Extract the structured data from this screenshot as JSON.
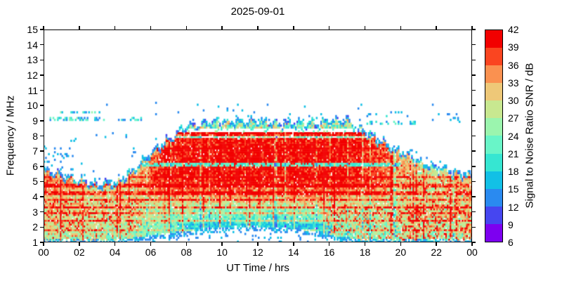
{
  "chart_data": {
    "type": "heatmap",
    "title": "2025-09-01",
    "xlabel": "UT Time / hrs",
    "ylabel": "Frequency / MHz",
    "colorbar_label": "Signal to Noise Ratio SNR / dB",
    "xlim": [
      0,
      24
    ],
    "ylim": [
      1,
      15
    ],
    "zlim": [
      6,
      42
    ],
    "x_ticks": {
      "values": [
        0,
        2,
        4,
        6,
        8,
        10,
        12,
        14,
        16,
        18,
        20,
        22,
        24
      ],
      "labels": [
        "00",
        "02",
        "04",
        "06",
        "08",
        "10",
        "12",
        "14",
        "16",
        "18",
        "20",
        "22",
        "00"
      ]
    },
    "y_ticks": {
      "values": [
        1,
        2,
        3,
        4,
        5,
        6,
        7,
        8,
        9,
        10,
        11,
        12,
        13,
        14,
        15
      ],
      "labels": [
        "1",
        "2",
        "3",
        "4",
        "5",
        "6",
        "7",
        "8",
        "9",
        "10",
        "11",
        "12",
        "13",
        "14",
        "15"
      ]
    },
    "colorbar_ticks": {
      "values": [
        6,
        9,
        12,
        15,
        18,
        21,
        24,
        27,
        30,
        33,
        36,
        39,
        42
      ],
      "labels": [
        "6",
        "9",
        "12",
        "15",
        "18",
        "21",
        "24",
        "27",
        "30",
        "33",
        "36",
        "39",
        "42"
      ]
    },
    "colormap_low_to_high": [
      "#7d00f0",
      "#4646f0",
      "#2a8af0",
      "#12c0e6",
      "#36e6d2",
      "#69f5c8",
      "#9bf5ae",
      "#c8e890",
      "#eec878",
      "#fa9150",
      "#fa4520",
      "#f20000"
    ],
    "grid_on": false,
    "upper_envelope_mhz_by_hour": [
      5.9,
      5.5,
      5.15,
      4.85,
      5.0,
      5.7,
      7.0,
      7.8,
      8.75,
      8.9,
      9.05,
      9.0,
      9.1,
      8.9,
      8.95,
      8.85,
      9.0,
      9.15,
      8.35,
      7.6,
      7.0,
      6.4,
      6.0,
      5.7,
      5.5
    ],
    "lower_envelope_mhz_by_hour": [
      1.0,
      1.0,
      1.0,
      1.0,
      1.0,
      1.05,
      1.3,
      1.4,
      1.55,
      1.7,
      1.8,
      1.85,
      1.85,
      1.8,
      1.75,
      1.6,
      1.35,
      1.1,
      1.0,
      1.0,
      1.0,
      1.0,
      1.0,
      1.0,
      1.0
    ],
    "grid": {
      "hours": [
        0,
        1,
        2,
        3,
        4,
        5,
        6,
        7,
        8,
        9,
        10,
        11,
        12,
        13,
        14,
        15,
        16,
        17,
        18,
        19,
        20,
        21,
        22,
        23
      ],
      "freqs_mhz": [
        1,
        2,
        3,
        4,
        5,
        6,
        7,
        8,
        9,
        10,
        11,
        12,
        13,
        14
      ],
      "mean_snr_db": [
        [
          26,
          26,
          25,
          25,
          24,
          23,
          21,
          19,
          16,
          14,
          13,
          13,
          13,
          14,
          15,
          16,
          19,
          21,
          23,
          24,
          25,
          25,
          26,
          26
        ],
        [
          29,
          29,
          28,
          28,
          27,
          26,
          24,
          22,
          20,
          18,
          17,
          17,
          17,
          18,
          19,
          20,
          24,
          26,
          26,
          26,
          27,
          27,
          28,
          28
        ],
        [
          31,
          30,
          30,
          29,
          29,
          28,
          27,
          26,
          25,
          24,
          24,
          24,
          24,
          24,
          25,
          26,
          28,
          28,
          27,
          27,
          28,
          29,
          30,
          30
        ],
        [
          32,
          31,
          30,
          30,
          30,
          31,
          33,
          34,
          34,
          34,
          33,
          33,
          33,
          34,
          34,
          34,
          34,
          33,
          32,
          30,
          29,
          29,
          30,
          31
        ],
        [
          36,
          34,
          31,
          30,
          31,
          34,
          39,
          40,
          40,
          40,
          40,
          40,
          40,
          40,
          40,
          40,
          40,
          39,
          38,
          34,
          31,
          30,
          30,
          32
        ],
        [
          30,
          28,
          26,
          25,
          26,
          32,
          40,
          41,
          41,
          41,
          41,
          41,
          41,
          41,
          41,
          41,
          41,
          40,
          39,
          36,
          32,
          28,
          26,
          27
        ],
        [
          24,
          22,
          20,
          20,
          20,
          26,
          38,
          41,
          41,
          41,
          41,
          41,
          41,
          41,
          41,
          41,
          41,
          40,
          39,
          35,
          30,
          24,
          22,
          22
        ],
        [
          20,
          18,
          16,
          16,
          16,
          20,
          30,
          39,
          40,
          40,
          40,
          40,
          40,
          40,
          40,
          40,
          40,
          40,
          37,
          28,
          22,
          20,
          18,
          18
        ],
        [
          16,
          15,
          14,
          14,
          14,
          16,
          20,
          26,
          27,
          27,
          28,
          28,
          28,
          28,
          28,
          27,
          27,
          26,
          24,
          20,
          18,
          16,
          15,
          15
        ],
        [
          13,
          13,
          12,
          12,
          12,
          13,
          14,
          15,
          16,
          16,
          16,
          16,
          16,
          16,
          16,
          16,
          16,
          15,
          14,
          13,
          13,
          12,
          12,
          12
        ],
        [
          12,
          12,
          12,
          12,
          12,
          12,
          12,
          12,
          12,
          12,
          12,
          12,
          12,
          12,
          12,
          12,
          12,
          12,
          12,
          12,
          12,
          12,
          12,
          12
        ],
        [
          12,
          12,
          12,
          12,
          12,
          12,
          12,
          12,
          12,
          12,
          12,
          12,
          12,
          12,
          12,
          12,
          12,
          12,
          12,
          12,
          12,
          12,
          12,
          12
        ],
        [
          12,
          12,
          12,
          12,
          12,
          12,
          12,
          12,
          12,
          12,
          12,
          12,
          12,
          12,
          12,
          12,
          12,
          12,
          12,
          12,
          12,
          12,
          12,
          12
        ],
        [
          12,
          12,
          12,
          12,
          12,
          12,
          12,
          12,
          12,
          12,
          12,
          12,
          12,
          12,
          12,
          12,
          12,
          12,
          12,
          12,
          12,
          12,
          12,
          12
        ]
      ]
    },
    "sporadic_patches": [
      {
        "t": [
          0.3,
          3.2
        ],
        "f": [
          9.45,
          9.68
        ],
        "density": 0.35,
        "snr": [
          12,
          26
        ]
      },
      {
        "t": [
          0.3,
          3.4
        ],
        "f": [
          9.0,
          9.2
        ],
        "density": 0.4,
        "snr": [
          12,
          26
        ]
      },
      {
        "t": [
          4.2,
          5.5
        ],
        "f": [
          9.0,
          9.25
        ],
        "density": 0.35,
        "snr": [
          12,
          24
        ]
      },
      {
        "t": [
          3.3,
          5.3
        ],
        "f": [
          9.8,
          10.1
        ],
        "density": 0.04,
        "snr": [
          12,
          18
        ]
      },
      {
        "t": [
          0.0,
          1.9
        ],
        "f": [
          6.1,
          7.4
        ],
        "density": 0.09,
        "snr": [
          12,
          17
        ]
      },
      {
        "t": [
          4.3,
          5.2
        ],
        "f": [
          6.6,
          7.0
        ],
        "density": 0.12,
        "snr": [
          12,
          16
        ]
      },
      {
        "t": [
          1.5,
          5.2
        ],
        "f": [
          7.6,
          8.3
        ],
        "density": 0.04,
        "snr": [
          12,
          16
        ]
      },
      {
        "t": [
          18.0,
          20.8
        ],
        "f": [
          8.7,
          8.95
        ],
        "density": 0.3,
        "snr": [
          12,
          24
        ]
      },
      {
        "t": [
          17.8,
          20.6
        ],
        "f": [
          9.2,
          9.6
        ],
        "density": 0.1,
        "snr": [
          12,
          20
        ]
      },
      {
        "t": [
          21.5,
          23.8
        ],
        "f": [
          8.7,
          9.5
        ],
        "density": 0.04,
        "snr": [
          12,
          18
        ]
      },
      {
        "t": [
          8.5,
          13.0
        ],
        "f": [
          9.6,
          10.1
        ],
        "density": 0.03,
        "snr": [
          12,
          18
        ]
      }
    ],
    "quiet_stripes": [
      {
        "t": [
          7.2,
          18.6
        ],
        "f": [
          8.3,
          8.47
        ],
        "presence": 0.15
      },
      {
        "t": [
          7.2,
          18.4
        ],
        "f": [
          7.9,
          8.05
        ],
        "presence": 0.55
      }
    ],
    "cool_stripes": [
      {
        "t": [
          7.5,
          16.2
        ],
        "f": [
          1.85,
          2.3
        ],
        "snr": [
          14,
          21
        ]
      },
      {
        "t": [
          5.5,
          20.0
        ],
        "f": [
          6.05,
          6.2
        ],
        "snr": [
          18,
          23
        ]
      }
    ],
    "transmitter_lines": [
      {
        "f": 1.85,
        "boost": 7
      },
      {
        "f": 2.45,
        "boost": 9
      },
      {
        "f": 2.95,
        "boost": 8
      },
      {
        "f": 3.35,
        "boost": 10
      },
      {
        "f": 3.85,
        "boost": 8
      },
      {
        "f": 4.25,
        "boost": 9
      },
      {
        "f": 4.75,
        "boost": 8
      },
      {
        "f": 5.35,
        "boost": 7
      },
      {
        "f": 7.15,
        "boost": 6
      },
      {
        "f": 8.2,
        "boost": 8
      }
    ],
    "hot_patch_zones": [
      {
        "t": [
          0,
          5.5
        ],
        "fmax": 3.7,
        "probability": 0.22,
        "boost": 9
      },
      {
        "t": [
          15.8,
          24
        ],
        "fmax": 3.5,
        "probability": 0.28,
        "boost": 10
      },
      {
        "t": [
          20,
          24
        ],
        "fmax": 5.5,
        "probability": 0.15,
        "boost": 8
      }
    ],
    "render": {
      "cols": 288,
      "rows": 112,
      "seed": 49,
      "fill_probability": 0.965,
      "noise_db": 7,
      "streak_probability": 0.12,
      "streak_boost_db": [
        6,
        16
      ]
    }
  }
}
